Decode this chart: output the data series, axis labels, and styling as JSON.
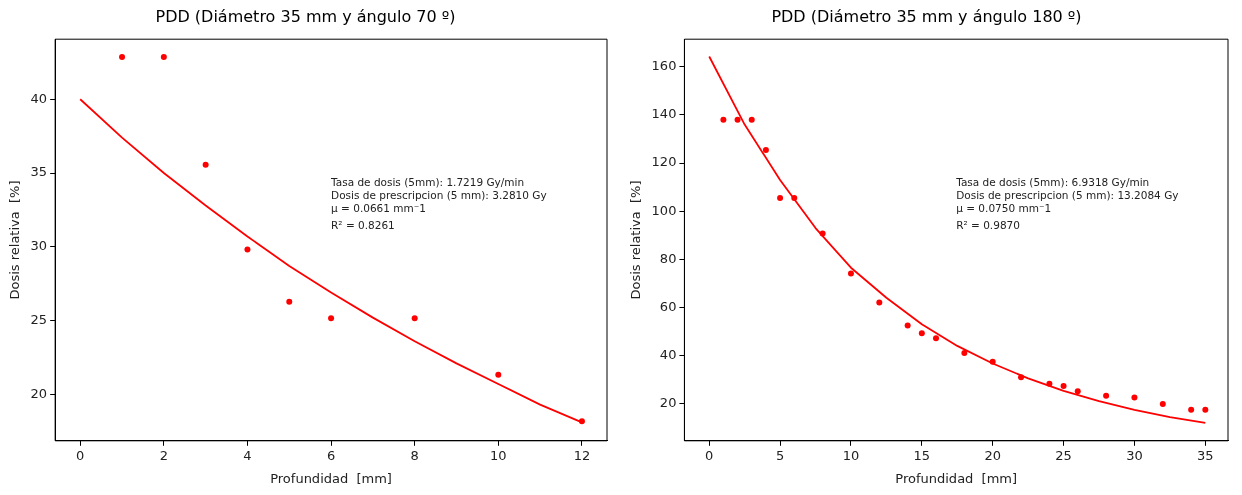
{
  "chart_data": [
    {
      "type": "scatter",
      "title": "PDD (Diámetro 35 mm y ángulo 70 º)",
      "xlabel": "Profundidad  [mm]",
      "ylabel": "Dosis relativa  [%]",
      "xlim": [
        -0.6,
        12.6
      ],
      "ylim": [
        16.85,
        44.07
      ],
      "xticks": [
        0,
        2,
        4,
        6,
        8,
        10,
        12
      ],
      "yticks": [
        20,
        25,
        30,
        35,
        40
      ],
      "legend": false,
      "series": [
        {
          "type": "scatter",
          "color": "#ff0000",
          "marker": "circle",
          "x": [
            1,
            2,
            3,
            4,
            5,
            6,
            8,
            10,
            12
          ],
          "values": [
            42.86,
            42.86,
            35.56,
            29.81,
            26.27,
            25.16,
            25.16,
            21.32,
            18.17
          ]
        },
        {
          "type": "line",
          "color": "#ff0000",
          "marker": "none",
          "line_style": "solid",
          "x": [
            0,
            1,
            2,
            3,
            4,
            5,
            6,
            7,
            8,
            9,
            10,
            11,
            12
          ],
          "values": [
            40,
            37.4,
            35.0,
            32.8,
            30.7,
            28.7,
            26.9,
            25.2,
            23.6,
            22.1,
            20.7,
            19.3,
            18.1
          ]
        }
      ],
      "annotations": [
        "Tasa de dosis (5mm): 1.7219 Gy/min",
        "Dosis de prescripcion (5 mm): 3.2810 Gy",
        "μ = 0.0661 mm⁻1",
        "R² = 0.8261"
      ]
    },
    {
      "type": "scatter",
      "title": "PDD (Diámetro 35 mm y ángulo 180 º)",
      "xlabel": "Profundidad  [mm]",
      "ylabel": "Dosis relativa  [%]",
      "xlim": [
        -1.75,
        36.6
      ],
      "ylim": [
        4.55,
        171.5
      ],
      "xticks": [
        0,
        5,
        10,
        15,
        20,
        25,
        30,
        35
      ],
      "yticks": [
        20,
        40,
        60,
        80,
        100,
        120,
        140,
        160
      ],
      "legend": false,
      "series": [
        {
          "type": "scatter",
          "color": "#ff0000",
          "marker": "circle",
          "x": [
            1,
            2,
            3,
            4,
            5,
            6,
            8,
            10,
            12,
            14,
            15,
            16,
            18,
            20,
            22,
            24,
            25,
            26,
            28,
            30,
            32,
            34,
            35
          ],
          "values": [
            138,
            138,
            138,
            125.4,
            105.5,
            105.5,
            90.7,
            74.1,
            62,
            52.5,
            49.3,
            47.2,
            41,
            37.4,
            31,
            28.3,
            27.3,
            25.1,
            23.3,
            22.5,
            19.8,
            17.5,
            17.5
          ]
        },
        {
          "type": "line",
          "color": "#ff0000",
          "marker": "none",
          "line_style": "solid",
          "x": [
            0,
            2.5,
            5,
            7.5,
            10,
            12.5,
            15,
            17.5,
            20,
            22.5,
            25,
            27.5,
            30,
            32.5,
            35
          ],
          "values": [
            164.3,
            136,
            113,
            93,
            76.5,
            64,
            53,
            44,
            36.7,
            30.5,
            25.3,
            21,
            17.4,
            14.4,
            12.0
          ]
        }
      ],
      "annotations": [
        "Tasa de dosis (5mm): 6.9318 Gy/min",
        "Dosis de prescripcion (5 mm): 13.2084 Gy",
        "μ = 0.0750 mm⁻1",
        "R² = 0.9870"
      ]
    }
  ]
}
